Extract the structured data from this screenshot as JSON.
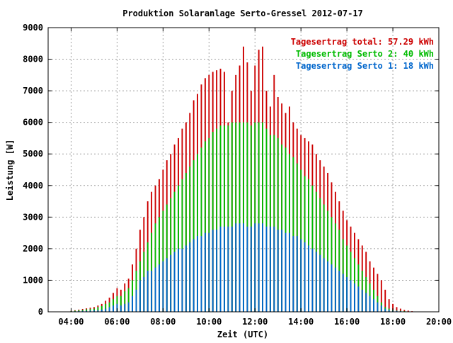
{
  "chart_data": {
    "type": "bar",
    "title": "Produktion Solaranlage Serto-Gressel 2012-07-17",
    "xlabel": "Zeit (UTC)",
    "ylabel": "Leistung [W]",
    "xlim": [
      "03:00",
      "20:00"
    ],
    "ylim": [
      0,
      9000
    ],
    "x_ticks": [
      "04:00",
      "06:00",
      "08:00",
      "10:00",
      "12:00",
      "14:00",
      "16:00",
      "18:00",
      "20:00"
    ],
    "y_ticks": [
      "0",
      "1000",
      "2000",
      "3000",
      "4000",
      "5000",
      "6000",
      "7000",
      "8000",
      "9000"
    ],
    "grid": true,
    "legend_position": "top-right",
    "legend": [
      {
        "label": "Tagesertrag total: 57.29 kWh",
        "color": "#cc0000"
      },
      {
        "label": "Tagesertrag Serto 2: 40 kWh",
        "color": "#00bb00"
      },
      {
        "label": "Tagesertrag Serto 1: 18 kWh",
        "color": "#0066cc"
      }
    ],
    "series": [
      {
        "name": "Tagesertrag total: 57.29 kWh",
        "color": "#cc0000",
        "key": "total"
      },
      {
        "name": "Tagesertrag Serto 2: 40 kWh",
        "color": "#00bb00",
        "key": "serto2"
      },
      {
        "name": "Tagesertrag Serto 1: 18 kWh",
        "color": "#0066cc",
        "key": "serto1"
      }
    ],
    "x": [
      "04:00",
      "04:10",
      "04:20",
      "04:30",
      "04:40",
      "04:50",
      "05:00",
      "05:10",
      "05:20",
      "05:30",
      "05:40",
      "05:50",
      "06:00",
      "06:10",
      "06:20",
      "06:30",
      "06:40",
      "06:50",
      "07:00",
      "07:10",
      "07:20",
      "07:30",
      "07:40",
      "07:50",
      "08:00",
      "08:10",
      "08:20",
      "08:30",
      "08:40",
      "08:50",
      "09:00",
      "09:10",
      "09:20",
      "09:30",
      "09:40",
      "09:50",
      "10:00",
      "10:10",
      "10:20",
      "10:30",
      "10:40",
      "10:50",
      "11:00",
      "11:10",
      "11:20",
      "11:30",
      "11:40",
      "11:50",
      "12:00",
      "12:10",
      "12:20",
      "12:30",
      "12:40",
      "12:50",
      "13:00",
      "13:10",
      "13:20",
      "13:30",
      "13:40",
      "13:50",
      "14:00",
      "14:10",
      "14:20",
      "14:30",
      "14:40",
      "14:50",
      "15:00",
      "15:10",
      "15:20",
      "15:30",
      "15:40",
      "15:50",
      "16:00",
      "16:10",
      "16:20",
      "16:30",
      "16:40",
      "16:50",
      "17:00",
      "17:10",
      "17:20",
      "17:30",
      "17:40",
      "17:50",
      "18:00",
      "18:10",
      "18:20",
      "18:30",
      "18:40",
      "18:50",
      "19:00"
    ],
    "total": [
      30,
      50,
      70,
      90,
      110,
      130,
      150,
      200,
      250,
      350,
      450,
      600,
      750,
      700,
      900,
      1050,
      1500,
      2000,
      2600,
      3000,
      3500,
      3800,
      4000,
      4200,
      4500,
      4800,
      5000,
      5300,
      5500,
      5800,
      6000,
      6300,
      6700,
      6900,
      7200,
      7400,
      7500,
      7600,
      7650,
      7700,
      7600,
      6000,
      7000,
      7500,
      7800,
      8400,
      7900,
      7000,
      7800,
      8300,
      8400,
      7000,
      6500,
      7500,
      6800,
      6600,
      6300,
      6500,
      6000,
      5800,
      5600,
      5500,
      5400,
      5300,
      5000,
      4800,
      4600,
      4400,
      4100,
      3800,
      3500,
      3200,
      2900,
      2700,
      2500,
      2300,
      2100,
      1900,
      1600,
      1400,
      1200,
      1000,
      700,
      400,
      250,
      150,
      100,
      60,
      40,
      20,
      10
    ],
    "serto2": [
      20,
      35,
      50,
      60,
      80,
      90,
      100,
      150,
      180,
      250,
      300,
      400,
      500,
      500,
      650,
      750,
      1000,
      1300,
      1600,
      1900,
      2200,
      2500,
      2800,
      3000,
      3200,
      3400,
      3600,
      3800,
      4000,
      4200,
      4400,
      4600,
      4800,
      5000,
      5200,
      5400,
      5500,
      5700,
      5800,
      5900,
      5900,
      5900,
      6000,
      6000,
      6000,
      6000,
      6000,
      5900,
      6000,
      6000,
      6000,
      5800,
      5600,
      5600,
      5500,
      5300,
      5200,
      5000,
      4900,
      4700,
      4500,
      4300,
      4200,
      4000,
      3800,
      3600,
      3400,
      3200,
      3000,
      2800,
      2600,
      2300,
      2100,
      1900,
      1700,
      1500,
      1300,
      1100,
      900,
      700,
      500,
      300,
      150,
      100,
      60,
      40,
      30,
      20,
      10,
      5,
      0
    ],
    "serto1": [
      10,
      15,
      20,
      30,
      30,
      40,
      50,
      50,
      70,
      100,
      150,
      200,
      250,
      200,
      250,
      300,
      500,
      700,
      1000,
      1100,
      1300,
      1300,
      1400,
      1500,
      1600,
      1700,
      1800,
      1900,
      2000,
      2000,
      2100,
      2200,
      2300,
      2400,
      2400,
      2500,
      2500,
      2600,
      2600,
      2700,
      2700,
      2700,
      2700,
      2800,
      2800,
      2800,
      2700,
      2700,
      2800,
      2800,
      2800,
      2700,
      2700,
      2700,
      2600,
      2600,
      2500,
      2500,
      2400,
      2400,
      2300,
      2200,
      2100,
      2000,
      1900,
      1800,
      1700,
      1600,
      1500,
      1400,
      1300,
      1200,
      1100,
      1000,
      900,
      800,
      700,
      600,
      500,
      400,
      300,
      200,
      100,
      60,
      40,
      30,
      20,
      10,
      5,
      3,
      0
    ]
  }
}
